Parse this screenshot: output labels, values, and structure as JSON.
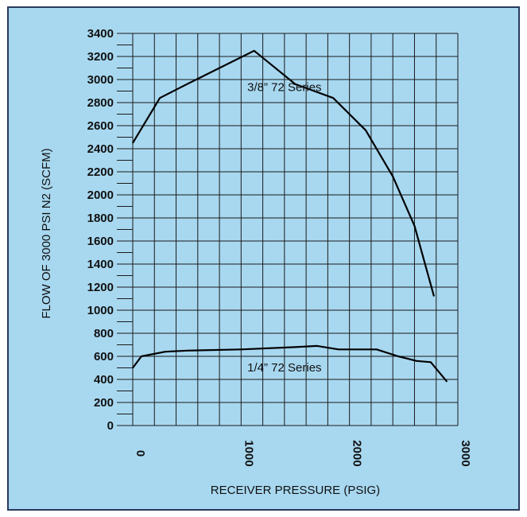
{
  "chart_data": {
    "type": "line",
    "title": "",
    "xlabel": "RECEIVER PRESSURE (PSIG)",
    "ylabel": "FLOW OF 3000 PSI N2 (SCFM)",
    "xlim": [
      0,
      3000
    ],
    "ylim": [
      0,
      3400
    ],
    "x_ticks": [
      0,
      1000,
      2000,
      3000
    ],
    "x_tick_labels": [
      "0",
      "1000",
      "2000",
      "3000"
    ],
    "y_ticks": [
      0,
      200,
      400,
      600,
      800,
      1000,
      1200,
      1400,
      1600,
      1800,
      2000,
      2200,
      2400,
      2600,
      2800,
      3000,
      3200,
      3400
    ],
    "y_tick_labels": [
      "0",
      "200",
      "400",
      "600",
      "800",
      "1000",
      "1200",
      "1400",
      "1600",
      "1800",
      "2000",
      "2200",
      "2400",
      "2600",
      "2800",
      "3000",
      "3200",
      "3400"
    ],
    "x_grid_step": 200,
    "y_grid_step": 200,
    "grid": true,
    "series": [
      {
        "name": "3/8” 72 Series",
        "x": [
          0,
          250,
          500,
          800,
          1120,
          1500,
          1850,
          2150,
          2400,
          2600,
          2780
        ],
        "y": [
          2450,
          2840,
          2960,
          3100,
          3250,
          2960,
          2840,
          2560,
          2160,
          1730,
          1120
        ]
      },
      {
        "name": "1/4” 72 Series",
        "x": [
          0,
          80,
          300,
          500,
          1000,
          1500,
          1700,
          1900,
          2250,
          2450,
          2620,
          2750,
          2900
        ],
        "y": [
          500,
          600,
          640,
          650,
          660,
          680,
          690,
          660,
          660,
          600,
          560,
          550,
          380
        ]
      }
    ]
  },
  "colors": {
    "background": "#a8d8f0",
    "border": "#2a3a5c",
    "line": "#000000",
    "grid": "#1a1a1a"
  }
}
